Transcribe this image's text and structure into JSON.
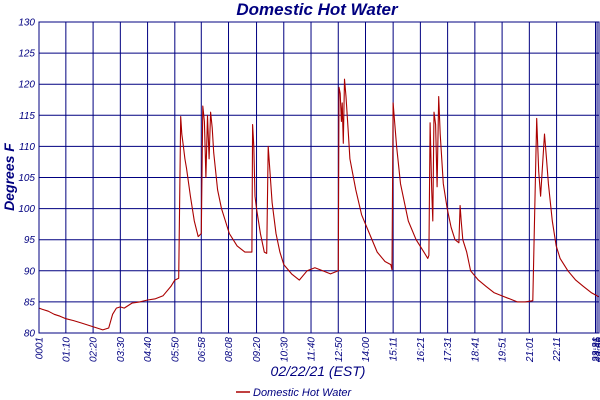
{
  "chart_data": {
    "type": "line",
    "title": "Domestic Hot Water",
    "xlabel": "02/22/21 (EST)",
    "ylabel": "Degrees F",
    "ylim": [
      80,
      130
    ],
    "yticks": [
      80,
      85,
      90,
      95,
      100,
      105,
      110,
      115,
      120,
      125,
      130
    ],
    "ytick_labels": [
      "80",
      "85",
      "90",
      "95",
      "100",
      "105",
      "110",
      "115",
      "120",
      "125",
      "130"
    ],
    "xlim_minutes": [
      1,
      1440
    ],
    "x_tick_minutes": [
      1,
      70,
      140,
      210,
      280,
      350,
      418,
      488,
      560,
      630,
      700,
      770,
      840,
      911,
      981,
      1051,
      1121,
      1191,
      1261,
      1331,
      1431,
      1435,
      1440
    ],
    "x_tick_labels": [
      "0001",
      "01:10",
      "02:20",
      "03:30",
      "04:40",
      "05:50",
      "06:58",
      "08:08",
      "09:20",
      "10:30",
      "11:40",
      "12:50",
      "14:00",
      "15:11",
      "16:21",
      "17:31",
      "18:41",
      "19:51",
      "21:01",
      "22:11",
      "23:31",
      "23:35",
      "23:59"
    ],
    "grid": true,
    "legend_position": "bottom-center",
    "color": "#aa0000",
    "series": [
      {
        "name": "Domestic Hot Water",
        "x": [
          1,
          10,
          25,
          40,
          55,
          70,
          90,
          110,
          130,
          150,
          165,
          180,
          190,
          200,
          210,
          220,
          240,
          260,
          280,
          300,
          320,
          340,
          350,
          360,
          365,
          368,
          372,
          376,
          380,
          390,
          400,
          410,
          418,
          422,
          426,
          430,
          434,
          438,
          442,
          446,
          450,
          460,
          470,
          480,
          490,
          500,
          510,
          530,
          548,
          550,
          553,
          556,
          560,
          570,
          580,
          586,
          590,
          600,
          610,
          620,
          630,
          650,
          670,
          690,
          710,
          730,
          750,
          770,
          772,
          775,
          778,
          780,
          783,
          786,
          790,
          795,
          800,
          815,
          830,
          850,
          870,
          890,
          905,
          908,
          911,
          920,
          930,
          950,
          970,
          990,
          1000,
          1003,
          1006,
          1010,
          1013,
          1016,
          1020,
          1024,
          1028,
          1032,
          1040,
          1050,
          1060,
          1070,
          1080,
          1083,
          1086,
          1090,
          1100,
          1110,
          1130,
          1150,
          1170,
          1190,
          1210,
          1230,
          1250,
          1270,
          1280,
          1285,
          1290,
          1300,
          1305,
          1310,
          1320,
          1330,
          1340,
          1360,
          1380,
          1400,
          1420,
          1440
        ],
        "values": [
          84.0,
          83.8,
          83.5,
          83.0,
          82.7,
          82.3,
          82.0,
          81.6,
          81.2,
          80.8,
          80.5,
          80.8,
          83.0,
          84.0,
          84.2,
          84.0,
          84.8,
          85.0,
          85.3,
          85.5,
          86.0,
          87.5,
          88.5,
          88.8,
          114.8,
          112.0,
          110.0,
          108.0,
          106.5,
          102.0,
          98.0,
          95.5,
          96.0,
          116.5,
          114.0,
          105.0,
          115.0,
          108.0,
          115.5,
          113.0,
          109.0,
          103.0,
          100.0,
          98.0,
          96.0,
          95.0,
          94.0,
          93.0,
          93.0,
          113.5,
          110.0,
          102.0,
          100.0,
          96.0,
          93.0,
          92.8,
          110.0,
          101.0,
          96.0,
          93.0,
          91.0,
          89.5,
          88.5,
          90.0,
          90.5,
          90.0,
          89.5,
          90.0,
          119.5,
          118.5,
          114.0,
          117.0,
          110.5,
          120.8,
          118.0,
          113.0,
          108.0,
          103.0,
          99.0,
          96.0,
          93.0,
          91.5,
          91.0,
          90.2,
          117.0,
          110.0,
          104.0,
          98.0,
          95.0,
          93.0,
          92.0,
          92.5,
          113.8,
          103.0,
          98.0,
          115.5,
          113.5,
          103.5,
          118.0,
          112.0,
          104.0,
          100.0,
          97.0,
          95.0,
          94.5,
          100.5,
          98.0,
          95.0,
          93.0,
          90.0,
          88.5,
          87.5,
          86.5,
          86.0,
          85.5,
          85.0,
          85.0,
          85.2,
          114.5,
          106.0,
          102.0,
          112.0,
          108.0,
          104.0,
          98.0,
          94.0,
          92.0,
          90.0,
          88.5,
          87.5,
          86.5,
          85.8
        ]
      }
    ]
  }
}
